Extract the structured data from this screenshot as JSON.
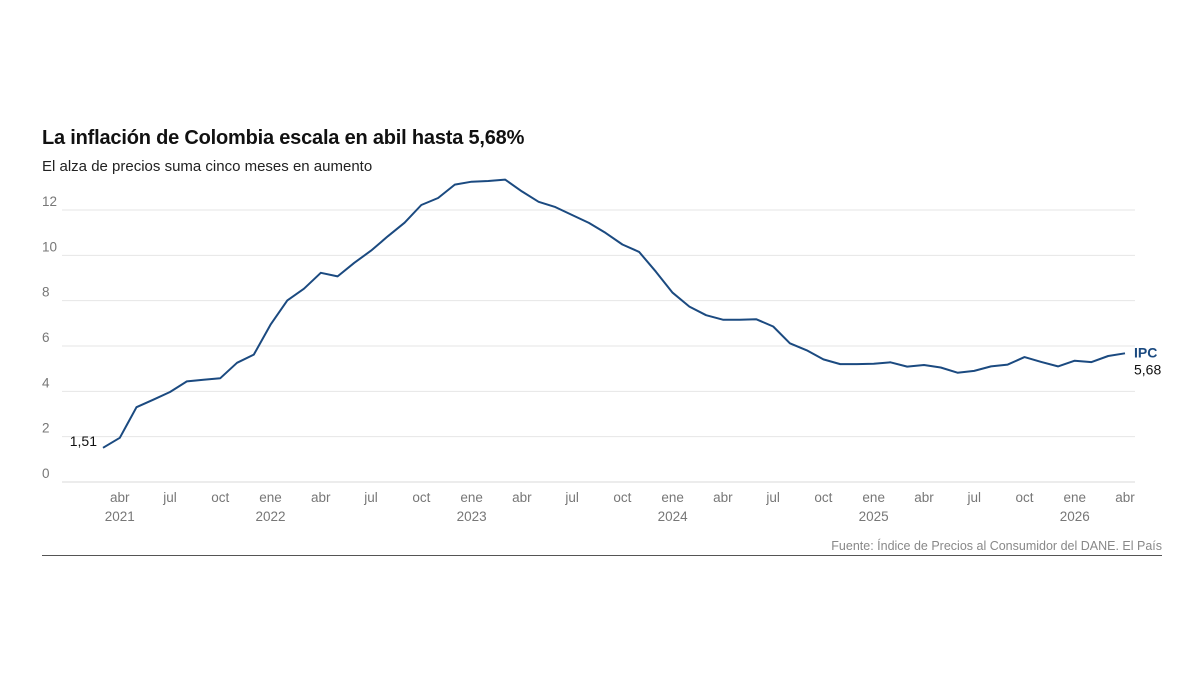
{
  "header": {
    "title": "La inflación de Colombia escala en abil hasta 5,68%",
    "subtitle": "El alza de precios suma cinco meses en aumento"
  },
  "source": "Fuente: Índice de Precios al Consumidor del DANE. El País",
  "colors": {
    "line": "#1b4a80",
    "grid": "#e6e6e6",
    "axis_text": "#777777",
    "series_label": "#1b4a80"
  },
  "chart_data": {
    "type": "line",
    "title": "La inflación de Colombia escala en abil hasta 5,68%",
    "subtitle": "El alza de precios suma cinco meses en aumento",
    "xlabel": "",
    "ylabel": "",
    "ylim": [
      0,
      14
    ],
    "yticks": [
      0,
      2,
      4,
      6,
      8,
      10,
      12
    ],
    "xlim": [
      "2021-03",
      "2026-04"
    ],
    "grid": "horizontal",
    "x_ticks": [
      {
        "date": "2021-04",
        "label": "abr",
        "year": "2021"
      },
      {
        "date": "2021-07",
        "label": "jul",
        "year": ""
      },
      {
        "date": "2021-10",
        "label": "oct",
        "year": ""
      },
      {
        "date": "2022-01",
        "label": "ene",
        "year": "2022"
      },
      {
        "date": "2022-04",
        "label": "abr",
        "year": ""
      },
      {
        "date": "2022-07",
        "label": "jul",
        "year": ""
      },
      {
        "date": "2022-10",
        "label": "oct",
        "year": ""
      },
      {
        "date": "2023-01",
        "label": "ene",
        "year": "2023"
      },
      {
        "date": "2023-04",
        "label": "abr",
        "year": ""
      },
      {
        "date": "2023-07",
        "label": "jul",
        "year": ""
      },
      {
        "date": "2023-10",
        "label": "oct",
        "year": ""
      },
      {
        "date": "2024-01",
        "label": "ene",
        "year": "2024"
      },
      {
        "date": "2024-04",
        "label": "abr",
        "year": ""
      },
      {
        "date": "2024-07",
        "label": "jul",
        "year": ""
      },
      {
        "date": "2024-10",
        "label": "oct",
        "year": ""
      },
      {
        "date": "2025-01",
        "label": "ene",
        "year": "2025"
      },
      {
        "date": "2025-04",
        "label": "abr",
        "year": ""
      },
      {
        "date": "2025-07",
        "label": "jul",
        "year": ""
      },
      {
        "date": "2025-10",
        "label": "oct",
        "year": ""
      },
      {
        "date": "2026-01",
        "label": "ene",
        "year": "2026"
      },
      {
        "date": "2026-04",
        "label": "abr",
        "year": ""
      }
    ],
    "series": [
      {
        "name": "IPC",
        "start_label": "1,51",
        "end_label": "5,68",
        "x": [
          "2021-03",
          "2021-04",
          "2021-05",
          "2021-06",
          "2021-07",
          "2021-08",
          "2021-09",
          "2021-10",
          "2021-11",
          "2021-12",
          "2022-01",
          "2022-02",
          "2022-03",
          "2022-04",
          "2022-05",
          "2022-06",
          "2022-07",
          "2022-08",
          "2022-09",
          "2022-10",
          "2022-11",
          "2022-12",
          "2023-01",
          "2023-02",
          "2023-03",
          "2023-04",
          "2023-05",
          "2023-06",
          "2023-07",
          "2023-08",
          "2023-09",
          "2023-10",
          "2023-11",
          "2023-12",
          "2024-01",
          "2024-02",
          "2024-03",
          "2024-04",
          "2024-05",
          "2024-06",
          "2024-07",
          "2024-08",
          "2024-09",
          "2024-10",
          "2024-11",
          "2024-12",
          "2025-01",
          "2025-02",
          "2025-03",
          "2025-04",
          "2025-05",
          "2025-06",
          "2025-07",
          "2025-08",
          "2025-09",
          "2025-10",
          "2025-11",
          "2025-12",
          "2026-01",
          "2026-02",
          "2026-03",
          "2026-04"
        ],
        "values": [
          1.51,
          1.95,
          3.3,
          3.63,
          3.97,
          4.44,
          4.51,
          4.58,
          5.26,
          5.62,
          6.94,
          8.01,
          8.53,
          9.23,
          9.07,
          9.67,
          10.21,
          10.84,
          11.44,
          12.22,
          12.53,
          13.12,
          13.25,
          13.28,
          13.34,
          12.82,
          12.36,
          12.13,
          11.78,
          11.43,
          10.99,
          10.48,
          10.15,
          9.28,
          8.35,
          7.74,
          7.36,
          7.16,
          7.16,
          7.18,
          6.86,
          6.12,
          5.81,
          5.41,
          5.2,
          5.2,
          5.22,
          5.28,
          5.09,
          5.16,
          5.05,
          4.82,
          4.9,
          5.1,
          5.18,
          5.51,
          5.3,
          5.1,
          5.35,
          5.29,
          5.56,
          5.68
        ]
      }
    ]
  }
}
